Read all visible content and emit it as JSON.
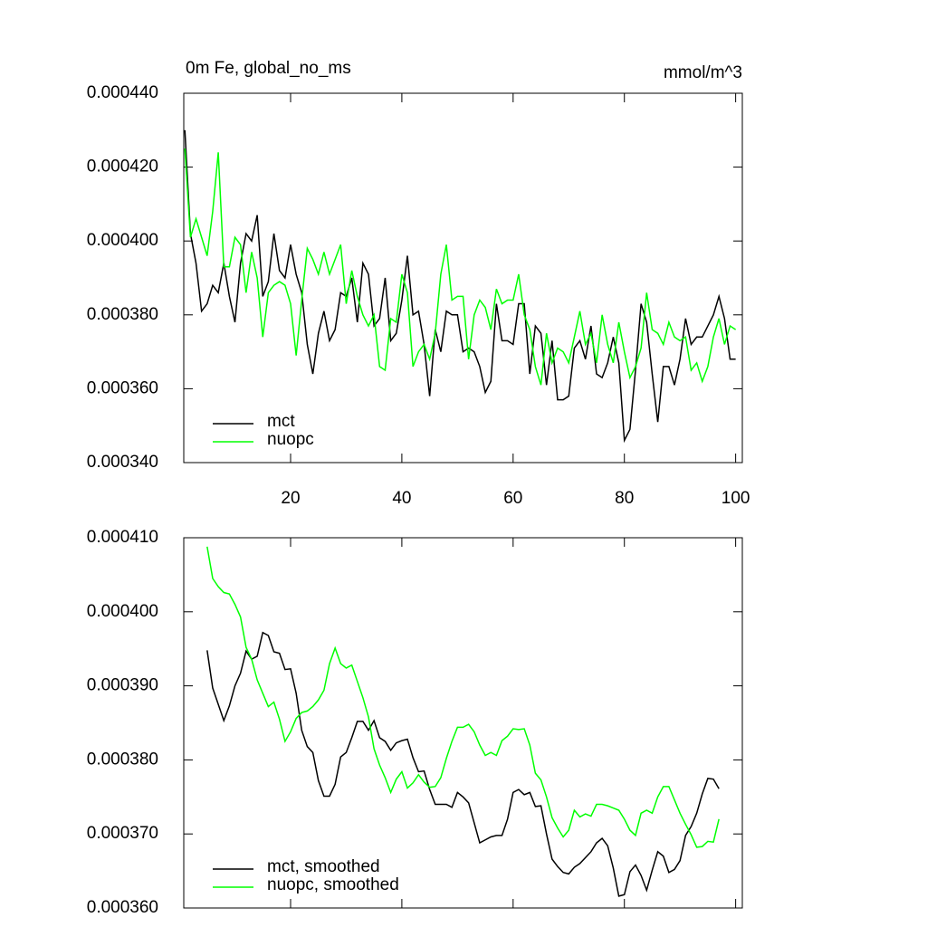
{
  "chart_data": [
    {
      "type": "line",
      "title": "0m Fe, global_no_ms",
      "y_units": "mmol/m^3",
      "x": [
        1,
        2,
        3,
        4,
        5,
        6,
        7,
        8,
        9,
        10,
        11,
        12,
        13,
        14,
        15,
        16,
        17,
        18,
        19,
        20,
        21,
        22,
        23,
        24,
        25,
        26,
        27,
        28,
        29,
        30,
        31,
        32,
        33,
        34,
        35,
        36,
        37,
        38,
        39,
        40,
        41,
        42,
        43,
        44,
        45,
        46,
        47,
        48,
        49,
        50,
        51,
        52,
        53,
        54,
        55,
        56,
        57,
        58,
        59,
        60,
        61,
        62,
        63,
        64,
        65,
        66,
        67,
        68,
        69,
        70,
        71,
        72,
        73,
        74,
        75,
        76,
        77,
        78,
        79,
        80,
        81,
        82,
        83,
        84,
        85,
        86,
        87,
        88,
        89,
        90,
        91,
        92,
        93,
        94,
        95,
        96,
        97,
        98,
        99,
        100
      ],
      "series": [
        {
          "name": "mct",
          "color": "#000000",
          "values": [
            0.00043,
            0.000402,
            0.000394,
            0.000381,
            0.000383,
            0.000388,
            0.000386,
            0.000394,
            0.000385,
            0.000378,
            0.000394,
            0.000402,
            0.0004,
            0.000407,
            0.000385,
            0.000389,
            0.000402,
            0.000392,
            0.00039,
            0.000399,
            0.000391,
            0.000386,
            0.000372,
            0.000364,
            0.000375,
            0.000381,
            0.000373,
            0.000376,
            0.000386,
            0.000385,
            0.00039,
            0.000378,
            0.000394,
            0.000391,
            0.000377,
            0.000379,
            0.00039,
            0.000373,
            0.000375,
            0.000384,
            0.000396,
            0.00038,
            0.000381,
            0.000372,
            0.000358,
            0.000376,
            0.00037,
            0.000381,
            0.00038,
            0.00038,
            0.00037,
            0.000371,
            0.00037,
            0.000366,
            0.000359,
            0.000362,
            0.000383,
            0.000373,
            0.000373,
            0.000372,
            0.000383,
            0.000383,
            0.000364,
            0.000377,
            0.000375,
            0.000361,
            0.000373,
            0.000357,
            0.000357,
            0.000358,
            0.000371,
            0.000373,
            0.000368,
            0.000377,
            0.000364,
            0.000363,
            0.000367,
            0.000374,
            0.000367,
            0.000346,
            0.000349,
            0.000365,
            0.000383,
            0.000378,
            0.000364,
            0.000351,
            0.000366,
            0.000366,
            0.000361,
            0.000368,
            0.000379,
            0.000372,
            0.000374,
            0.000374,
            0.000377,
            0.00038,
            0.000385,
            0.000379,
            0.000368,
            0.000368
          ]
        },
        {
          "name": "nuopc",
          "color": "#00ff00",
          "values": [
            0.000425,
            0.000401,
            0.000406,
            0.000401,
            0.000396,
            0.000408,
            0.000424,
            0.000393,
            0.000393,
            0.000401,
            0.000399,
            0.000386,
            0.000397,
            0.00039,
            0.000374,
            0.000386,
            0.000388,
            0.000389,
            0.000388,
            0.000383,
            0.000369,
            0.000384,
            0.000398,
            0.000395,
            0.000391,
            0.000397,
            0.000391,
            0.000395,
            0.000399,
            0.000383,
            0.000392,
            0.000385,
            0.00038,
            0.000377,
            0.00038,
            0.000366,
            0.000365,
            0.000379,
            0.000378,
            0.000391,
            0.000386,
            0.000366,
            0.00037,
            0.000372,
            0.000368,
            0.000375,
            0.000391,
            0.000399,
            0.000384,
            0.000385,
            0.000385,
            0.000368,
            0.00038,
            0.000384,
            0.000382,
            0.000376,
            0.000387,
            0.000383,
            0.000384,
            0.000384,
            0.000391,
            0.00038,
            0.000376,
            0.000366,
            0.000361,
            0.000375,
            0.000367,
            0.000371,
            0.00037,
            0.000367,
            0.000374,
            0.000381,
            0.000372,
            0.000375,
            0.000367,
            0.00038,
            0.000372,
            0.000367,
            0.000378,
            0.00037,
            0.000363,
            0.000366,
            0.000371,
            0.000386,
            0.000376,
            0.000375,
            0.000372,
            0.000378,
            0.000374,
            0.000373,
            0.000374,
            0.000365,
            0.000367,
            0.000362,
            0.000366,
            0.000374,
            0.000379,
            0.000372,
            0.000377,
            0.000376
          ]
        }
      ],
      "xlim": [
        0.8,
        101.2
      ],
      "xticks": [
        20,
        40,
        60,
        80,
        100
      ],
      "xtick_labels": true,
      "ylim": [
        0.00034,
        0.00044
      ],
      "yticks": [
        {
          "value": 0.00034,
          "label": "0.000340"
        },
        {
          "value": 0.00036,
          "label": "0.000360"
        },
        {
          "value": 0.00038,
          "label": "0.000380"
        },
        {
          "value": 0.0004,
          "label": "0.000400"
        },
        {
          "value": 0.00042,
          "label": "0.000420"
        },
        {
          "value": 0.00044,
          "label": "0.000440"
        }
      ],
      "grid": false,
      "legend": "lower left"
    },
    {
      "type": "line",
      "x": [
        5,
        6,
        7,
        8,
        9,
        10,
        11,
        12,
        13,
        14,
        15,
        16,
        17,
        18,
        19,
        20,
        21,
        22,
        23,
        24,
        25,
        26,
        27,
        28,
        29,
        30,
        31,
        32,
        33,
        34,
        35,
        36,
        37,
        38,
        39,
        40,
        41,
        42,
        43,
        44,
        45,
        46,
        47,
        48,
        49,
        50,
        51,
        52,
        53,
        54,
        55,
        56,
        57,
        58,
        59,
        60,
        61,
        62,
        63,
        64,
        65,
        66,
        67,
        68,
        69,
        70,
        71,
        72,
        73,
        74,
        75,
        76,
        77,
        78,
        79,
        80,
        81,
        82,
        83,
        84,
        85,
        86,
        87,
        88,
        89,
        90,
        91,
        92,
        93,
        94,
        95,
        96,
        97
      ],
      "series": [
        {
          "name": "mct, smoothed",
          "color": "#000000",
          "values": [
            0.0003948,
            0.0003897,
            0.0003875,
            0.0003853,
            0.0003873,
            0.00039,
            0.0003917,
            0.0003947,
            0.0003936,
            0.000394,
            0.0003972,
            0.0003968,
            0.0003946,
            0.0003944,
            0.0003922,
            0.0003923,
            0.000389,
            0.000384,
            0.0003818,
            0.000381,
            0.0003772,
            0.0003751,
            0.0003751,
            0.0003767,
            0.0003804,
            0.000381,
            0.000383,
            0.0003852,
            0.0003852,
            0.000384,
            0.0003853,
            0.000383,
            0.0003825,
            0.0003813,
            0.0003823,
            0.0003826,
            0.0003828,
            0.0003803,
            0.0003784,
            0.0003785,
            0.000376,
            0.000374,
            0.000374,
            0.000374,
            0.0003736,
            0.0003756,
            0.000375,
            0.0003742,
            0.0003715,
            0.0003688,
            0.0003692,
            0.0003696,
            0.0003698,
            0.0003698,
            0.000372,
            0.0003756,
            0.000376,
            0.0003753,
            0.0003756,
            0.0003737,
            0.0003738,
            0.00037,
            0.0003666,
            0.0003656,
            0.0003648,
            0.0003646,
            0.0003655,
            0.000366,
            0.0003668,
            0.0003676,
            0.0003688,
            0.0003694,
            0.0003684,
            0.0003654,
            0.0003616,
            0.0003618,
            0.0003649,
            0.0003658,
            0.0003644,
            0.0003624,
            0.0003651,
            0.0003676,
            0.000367,
            0.0003648,
            0.0003652,
            0.0003664,
            0.0003698,
            0.000371,
            0.0003728,
            0.0003754,
            0.0003775,
            0.0003774,
            0.0003761
          ]
        },
        {
          "name": "nuopc, smoothed",
          "color": "#00ff00",
          "values": [
            0.0004088,
            0.0004045,
            0.0004034,
            0.0004026,
            0.0004024,
            0.000401,
            0.0003993,
            0.0003952,
            0.0003936,
            0.0003908,
            0.000389,
            0.0003872,
            0.0003878,
            0.0003855,
            0.0003825,
            0.0003838,
            0.0003856,
            0.0003864,
            0.0003866,
            0.0003872,
            0.0003881,
            0.0003894,
            0.000393,
            0.0003951,
            0.000393,
            0.0003924,
            0.0003928,
            0.0003906,
            0.0003884,
            0.0003858,
            0.0003815,
            0.0003793,
            0.0003776,
            0.0003756,
            0.0003774,
            0.0003784,
            0.0003762,
            0.0003769,
            0.000378,
            0.000377,
            0.0003763,
            0.0003764,
            0.0003776,
            0.0003802,
            0.0003825,
            0.0003844,
            0.0003844,
            0.0003848,
            0.0003838,
            0.000382,
            0.0003806,
            0.000381,
            0.0003806,
            0.0003826,
            0.0003832,
            0.0003842,
            0.0003841,
            0.0003842,
            0.000382,
            0.0003782,
            0.0003773,
            0.000375,
            0.0003722,
            0.0003708,
            0.0003696,
            0.0003705,
            0.0003732,
            0.0003723,
            0.0003727,
            0.0003724,
            0.000374,
            0.000374,
            0.0003738,
            0.0003735,
            0.0003732,
            0.000372,
            0.0003705,
            0.0003698,
            0.0003728,
            0.0003732,
            0.0003728,
            0.000375,
            0.0003764,
            0.0003764,
            0.0003746,
            0.0003728,
            0.0003713,
            0.0003699,
            0.0003682,
            0.0003683,
            0.000369,
            0.0003689,
            0.000372
          ]
        }
      ],
      "xlim": [
        0.8,
        101.2
      ],
      "xticks": [
        20,
        40,
        60,
        80,
        100
      ],
      "xtick_labels": false,
      "ylim": [
        0.00036,
        0.00041
      ],
      "yticks": [
        {
          "value": 0.00036,
          "label": "0.000360"
        },
        {
          "value": 0.00037,
          "label": "0.000370"
        },
        {
          "value": 0.00038,
          "label": "0.000380"
        },
        {
          "value": 0.00039,
          "label": "0.000390"
        },
        {
          "value": 0.0004,
          "label": "0.000400"
        },
        {
          "value": 0.00041,
          "label": "0.000410"
        }
      ],
      "grid": false,
      "legend": "lower left"
    }
  ]
}
